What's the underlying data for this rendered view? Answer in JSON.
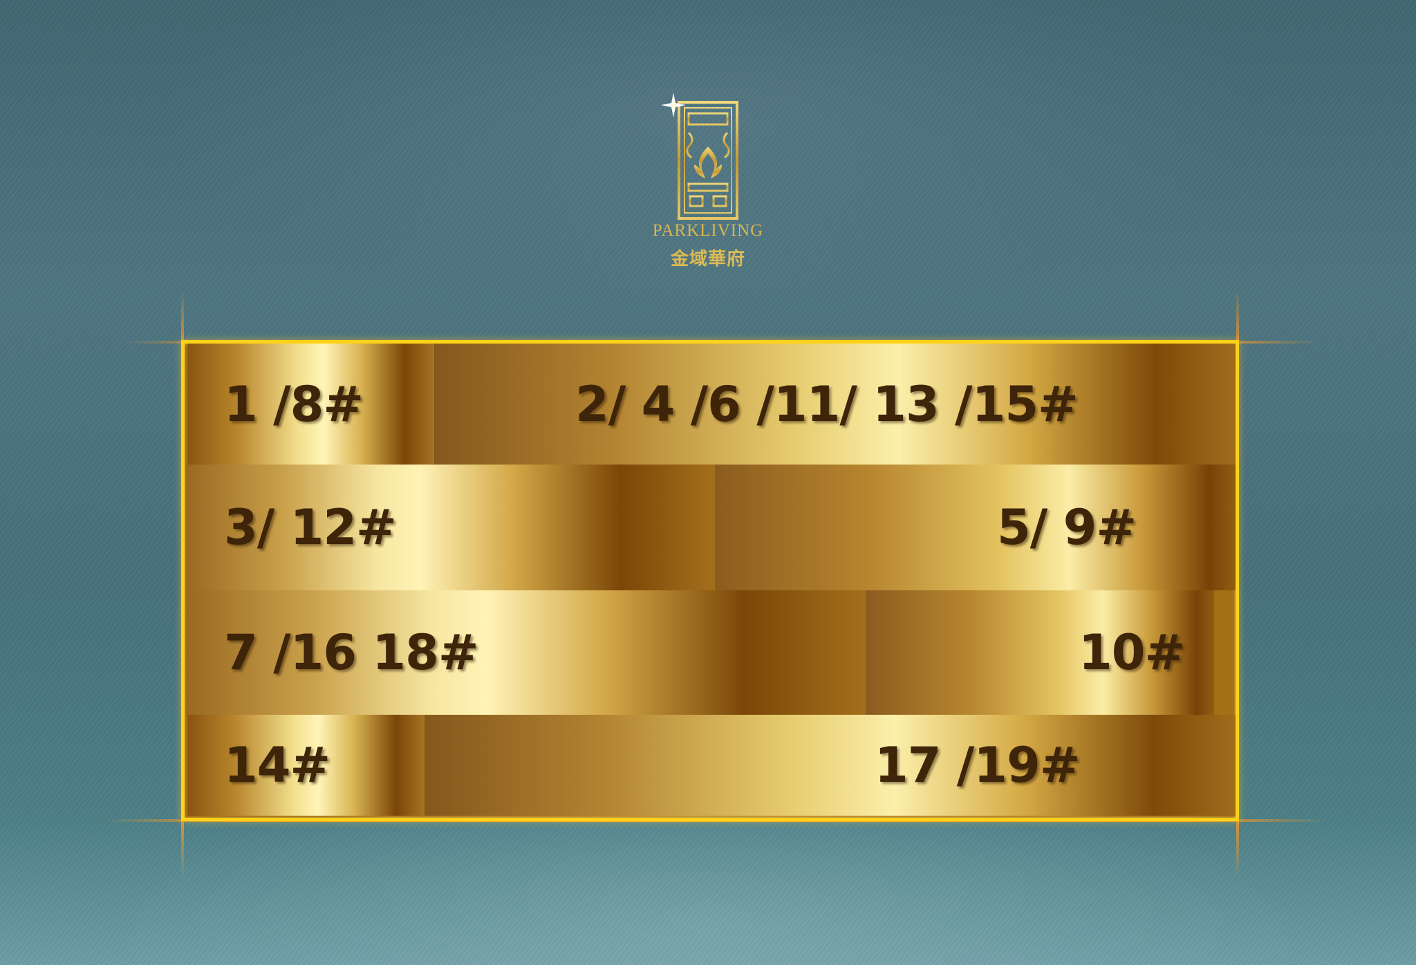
{
  "logo": {
    "wordmark": "PARKLIVING",
    "subtitle": "金域華府",
    "color": "#d9b650"
  },
  "panel": {
    "border_color": "#ffd21a",
    "glow_color": "#ff9a20",
    "text_color": "#3e2408",
    "rows": [
      {
        "cells": [
          "1 /8#",
          "2/ 4 /6 /11/ 13 /15#"
        ]
      },
      {
        "cells": [
          "3/ 12#",
          "5/ 9#"
        ]
      },
      {
        "cells": [
          "7 /16 18#",
          "10#"
        ]
      },
      {
        "cells": [
          "14#",
          "17 /19#"
        ]
      }
    ]
  }
}
